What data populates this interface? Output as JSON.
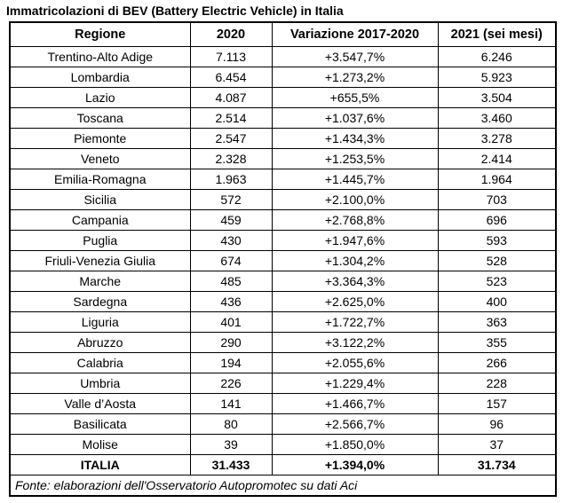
{
  "title": "Immatricolazioni di BEV (Battery Electric Vehicle) in Italia",
  "chart_data": {
    "type": "table",
    "columns": [
      "Regione",
      "2020",
      "Variazione 2017-2020",
      "2021 (sei mesi)"
    ],
    "rows": [
      [
        "Trentino-Alto Adige",
        "7.113",
        "+3.547,7%",
        "6.246"
      ],
      [
        "Lombardia",
        "6.454",
        "+1.273,2%",
        "5.923"
      ],
      [
        "Lazio",
        "4.087",
        "+655,5%",
        "3.504"
      ],
      [
        "Toscana",
        "2.514",
        "+1.037,6%",
        "3.460"
      ],
      [
        "Piemonte",
        "2.547",
        "+1.434,3%",
        "3.278"
      ],
      [
        "Veneto",
        "2.328",
        "+1.253,5%",
        "2.414"
      ],
      [
        "Emilia-Romagna",
        "1.963",
        "+1.445,7%",
        "1.964"
      ],
      [
        "Sicilia",
        "572",
        "+2.100,0%",
        "703"
      ],
      [
        "Campania",
        "459",
        "+2.768,8%",
        "696"
      ],
      [
        "Puglia",
        "430",
        "+1.947,6%",
        "593"
      ],
      [
        "Friuli-Venezia Giulia",
        "674",
        "+1.304,2%",
        "528"
      ],
      [
        "Marche",
        "485",
        "+3.364,3%",
        "523"
      ],
      [
        "Sardegna",
        "436",
        "+2.625,0%",
        "400"
      ],
      [
        "Liguria",
        "401",
        "+1.722,7%",
        "363"
      ],
      [
        "Abruzzo",
        "290",
        "+3.122,2%",
        "355"
      ],
      [
        "Calabria",
        "194",
        "+2.055,6%",
        "266"
      ],
      [
        "Umbria",
        "226",
        "+1.229,4%",
        "228"
      ],
      [
        "Valle d’Aosta",
        "141",
        "+1.466,7%",
        "157"
      ],
      [
        "Basilicata",
        "80",
        "+2.566,7%",
        "96"
      ],
      [
        "Molise",
        "39",
        "+1.850,0%",
        "37"
      ]
    ],
    "total_row": [
      "ITALIA",
      "31.433",
      "+1.394,0%",
      "31.734"
    ],
    "source": "Fonte: elaborazioni dell'Osservatorio Autopromotec su dati Aci"
  }
}
